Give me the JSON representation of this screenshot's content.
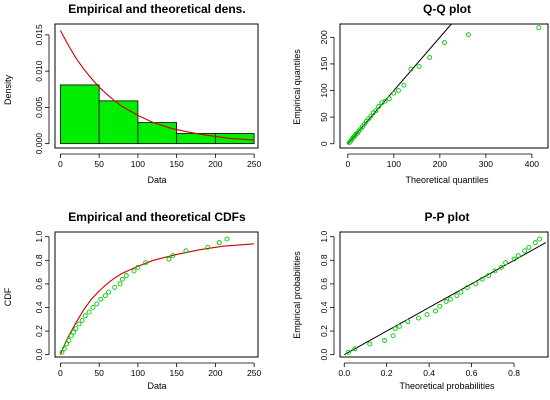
{
  "colors": {
    "bar_fill": "#00ee00",
    "curve": "#cc0000",
    "points": "#00cc00",
    "reference_line": "#000000"
  },
  "chart_data": [
    {
      "type": "bar",
      "title": "Empirical and theoretical dens.",
      "xlabel": "Data",
      "ylabel": "Density",
      "xlim": [
        -7,
        255
      ],
      "ylim": [
        -0.0006,
        0.0165
      ],
      "x_ticks": [
        0,
        50,
        100,
        150,
        200,
        250
      ],
      "y_ticks": [
        0.0,
        0.005,
        0.01,
        0.015
      ],
      "x_tick_labels": [
        "0",
        "50",
        "100",
        "150",
        "200",
        "250"
      ],
      "y_tick_labels": [
        "0.000",
        "0.005",
        "0.010",
        "0.015"
      ],
      "bins": [
        [
          0,
          50
        ],
        [
          50,
          100
        ],
        [
          100,
          150
        ],
        [
          150,
          200
        ],
        [
          200,
          250
        ]
      ],
      "values": [
        0.0081,
        0.0059,
        0.0029,
        0.0014,
        0.0014
      ],
      "series": [
        {
          "kind": "density-curve",
          "x": [
            0,
            10,
            20,
            30,
            40,
            50,
            60,
            70,
            80,
            90,
            100,
            110,
            120,
            140,
            160,
            180,
            200,
            220,
            250
          ],
          "y": [
            0.0156,
            0.0136,
            0.0118,
            0.0103,
            0.009,
            0.0078,
            0.0068,
            0.0059,
            0.0051,
            0.0045,
            0.0039,
            0.0034,
            0.0029,
            0.0022,
            0.0017,
            0.0013,
            0.001,
            0.0007,
            0.0005
          ]
        }
      ],
      "grid": false
    },
    {
      "type": "scatter",
      "title": "Q-Q plot",
      "xlabel": "Theoretical quantiles",
      "ylabel": "Empirical quantiles",
      "xlim": [
        -17,
        435
      ],
      "ylim": [
        -8,
        225
      ],
      "x_ticks": [
        0,
        100,
        200,
        300,
        400
      ],
      "y_ticks": [
        0,
        50,
        100,
        150,
        200
      ],
      "x_tick_labels": [
        "0",
        "100",
        "200",
        "300",
        "400"
      ],
      "y_tick_labels": [
        "0",
        "50",
        "100",
        "150",
        "200"
      ],
      "x": [
        3,
        6,
        9,
        12,
        15,
        18,
        21,
        24,
        28,
        32,
        36,
        40,
        45,
        50,
        55,
        61,
        67,
        74,
        81,
        90,
        100,
        110,
        122,
        137,
        155,
        178,
        210,
        262,
        415
      ],
      "y": [
        2,
        5,
        9,
        12,
        15,
        18,
        20,
        24,
        28,
        32,
        37,
        42,
        47,
        52,
        58,
        62,
        70,
        77,
        80,
        85,
        95,
        100,
        110,
        140,
        145,
        162,
        190,
        205,
        218
      ],
      "reference_line": [
        [
          0,
          0
        ],
        [
          225,
          225
        ]
      ],
      "grid": false
    },
    {
      "type": "line",
      "title": "Empirical and theoretical CDFs",
      "xlabel": "Data",
      "ylabel": "CDF",
      "xlim": [
        -7,
        255
      ],
      "ylim": [
        -0.02,
        1.04
      ],
      "x_ticks": [
        0,
        50,
        100,
        150,
        200,
        250
      ],
      "y_ticks": [
        0.0,
        0.2,
        0.4,
        0.6,
        0.8,
        1.0
      ],
      "x_tick_labels": [
        "0",
        "50",
        "100",
        "150",
        "200",
        "250"
      ],
      "y_tick_labels": [
        "0.0",
        "0.2",
        "0.4",
        "0.6",
        "0.8",
        "1.0"
      ],
      "series": [
        {
          "kind": "theoretical-cdf",
          "x": [
            0,
            5,
            10,
            20,
            30,
            40,
            50,
            60,
            70,
            80,
            100,
            120,
            150,
            180,
            210,
            250
          ],
          "y": [
            0.0,
            0.08,
            0.15,
            0.27,
            0.38,
            0.47,
            0.54,
            0.6,
            0.65,
            0.69,
            0.75,
            0.8,
            0.85,
            0.89,
            0.92,
            0.94
          ]
        },
        {
          "kind": "empirical-cdf",
          "x": [
            2,
            5,
            8,
            11,
            14,
            17,
            20,
            24,
            28,
            32,
            37,
            42,
            47,
            52,
            58,
            62,
            70,
            77,
            80,
            85,
            95,
            100,
            110,
            140,
            145,
            162,
            190,
            205,
            215
          ],
          "y": [
            0.02,
            0.05,
            0.09,
            0.12,
            0.16,
            0.19,
            0.22,
            0.26,
            0.29,
            0.33,
            0.36,
            0.4,
            0.43,
            0.47,
            0.5,
            0.53,
            0.57,
            0.6,
            0.64,
            0.67,
            0.71,
            0.74,
            0.78,
            0.81,
            0.84,
            0.88,
            0.91,
            0.95,
            0.98
          ]
        }
      ],
      "grid": false
    },
    {
      "type": "scatter",
      "title": "P-P plot",
      "xlabel": "Theoretical probabilities",
      "ylabel": "Empirical probabilities",
      "xlim": [
        -0.02,
        0.96
      ],
      "ylim": [
        -0.02,
        1.04
      ],
      "x_ticks": [
        0.0,
        0.2,
        0.4,
        0.6,
        0.8
      ],
      "y_ticks": [
        0.0,
        0.2,
        0.4,
        0.6,
        0.8,
        1.0
      ],
      "x_tick_labels": [
        "0.0",
        "0.2",
        "0.4",
        "0.6",
        "0.8"
      ],
      "y_tick_labels": [
        "0.0",
        "0.2",
        "0.4",
        "0.6",
        "0.8",
        "1.0"
      ],
      "x": [
        0.02,
        0.05,
        0.12,
        0.19,
        0.23,
        0.24,
        0.26,
        0.3,
        0.35,
        0.39,
        0.43,
        0.45,
        0.48,
        0.5,
        0.53,
        0.55,
        0.58,
        0.62,
        0.65,
        0.68,
        0.71,
        0.74,
        0.76,
        0.8,
        0.82,
        0.85,
        0.87,
        0.9,
        0.92
      ],
      "y": [
        0.02,
        0.05,
        0.09,
        0.12,
        0.16,
        0.22,
        0.24,
        0.28,
        0.31,
        0.34,
        0.37,
        0.41,
        0.45,
        0.47,
        0.5,
        0.53,
        0.57,
        0.6,
        0.64,
        0.67,
        0.71,
        0.74,
        0.78,
        0.81,
        0.84,
        0.88,
        0.91,
        0.95,
        0.98
      ],
      "reference_line": [
        [
          0,
          0
        ],
        [
          0.95,
          0.95
        ]
      ],
      "grid": false
    }
  ]
}
